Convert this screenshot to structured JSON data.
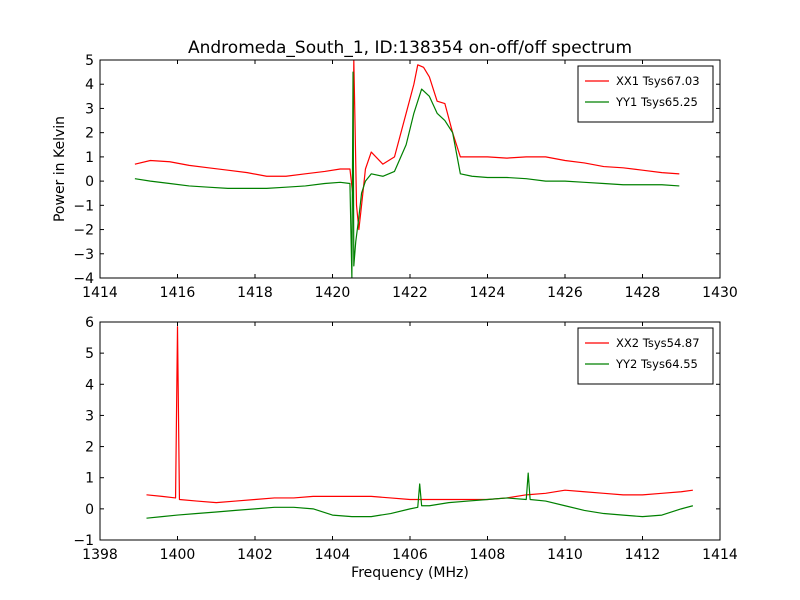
{
  "title": "Andromeda_South_1, ID:138354 on-off/off spectrum",
  "xlabel": "Frequency (MHz)",
  "chart_data": [
    {
      "type": "line",
      "title": "Andromeda_South_1, ID:138354 on-off/off spectrum",
      "xlabel": "",
      "ylabel": "Power in Kelvin",
      "xlim": [
        1414,
        1430
      ],
      "ylim": [
        -4,
        5
      ],
      "xticks": [
        1414,
        1416,
        1418,
        1420,
        1422,
        1424,
        1426,
        1428,
        1430
      ],
      "yticks": [
        -4,
        -3,
        -2,
        -1,
        0,
        1,
        2,
        3,
        4,
        5
      ],
      "xtick_labels": [
        "1414",
        "1416",
        "1418",
        "1420",
        "1422",
        "1424",
        "1426",
        "1428",
        "1430"
      ],
      "ytick_labels": [
        "−4",
        "−3",
        "−2",
        "−1",
        "0",
        "1",
        "2",
        "3",
        "4",
        "5"
      ],
      "grid": false,
      "legend_position": "top-right",
      "series": [
        {
          "name": "XX1 Tsys67.03",
          "color": "#ff0000",
          "x": [
            1414.9,
            1415.3,
            1415.8,
            1416.3,
            1416.8,
            1417.3,
            1417.8,
            1418.3,
            1418.8,
            1419.3,
            1419.8,
            1420.2,
            1420.45,
            1420.52,
            1420.55,
            1420.58,
            1420.62,
            1420.68,
            1420.75,
            1420.85,
            1421.0,
            1421.3,
            1421.6,
            1421.9,
            1422.1,
            1422.2,
            1422.35,
            1422.5,
            1422.7,
            1422.9,
            1423.1,
            1423.3,
            1423.6,
            1424.0,
            1424.5,
            1425.0,
            1425.5,
            1426.0,
            1426.5,
            1427.0,
            1427.5,
            1428.0,
            1428.5,
            1428.95
          ],
          "y": [
            0.7,
            0.85,
            0.8,
            0.65,
            0.55,
            0.45,
            0.35,
            0.2,
            0.2,
            0.3,
            0.4,
            0.5,
            0.5,
            -0.5,
            5.0,
            2.5,
            -1.0,
            -2.0,
            -1.0,
            0.5,
            1.2,
            0.7,
            1.0,
            2.8,
            4.0,
            4.8,
            4.7,
            4.3,
            3.3,
            3.2,
            2.0,
            1.0,
            1.0,
            1.0,
            0.95,
            1.0,
            1.0,
            0.85,
            0.75,
            0.6,
            0.55,
            0.45,
            0.35,
            0.3
          ]
        },
        {
          "name": "YY1 Tsys65.25",
          "color": "#008000",
          "x": [
            1414.9,
            1415.3,
            1415.8,
            1416.3,
            1416.8,
            1417.3,
            1417.8,
            1418.3,
            1418.8,
            1419.3,
            1419.8,
            1420.2,
            1420.45,
            1420.5,
            1420.53,
            1420.55,
            1420.6,
            1420.68,
            1420.75,
            1420.85,
            1421.0,
            1421.3,
            1421.6,
            1421.9,
            1422.1,
            1422.3,
            1422.5,
            1422.7,
            1422.9,
            1423.1,
            1423.3,
            1423.6,
            1424.0,
            1424.5,
            1425.0,
            1425.5,
            1426.0,
            1426.5,
            1427.0,
            1427.5,
            1428.0,
            1428.5,
            1428.95
          ],
          "y": [
            0.1,
            0.0,
            -0.1,
            -0.2,
            -0.25,
            -0.3,
            -0.3,
            -0.3,
            -0.25,
            -0.2,
            -0.1,
            -0.05,
            -0.1,
            -4.0,
            4.5,
            -3.5,
            -2.5,
            -1.5,
            -0.5,
            0.0,
            0.3,
            0.2,
            0.4,
            1.5,
            2.8,
            3.8,
            3.5,
            2.8,
            2.5,
            2.0,
            0.3,
            0.2,
            0.15,
            0.15,
            0.1,
            0.0,
            0.0,
            -0.05,
            -0.1,
            -0.15,
            -0.15,
            -0.15,
            -0.2
          ]
        }
      ]
    },
    {
      "type": "line",
      "title": "",
      "xlabel": "Frequency (MHz)",
      "ylabel": "",
      "xlim": [
        1398,
        1414
      ],
      "ylim": [
        -1,
        6
      ],
      "xticks": [
        1398,
        1400,
        1402,
        1404,
        1406,
        1408,
        1410,
        1412,
        1414
      ],
      "yticks": [
        -1,
        0,
        1,
        2,
        3,
        4,
        5,
        6
      ],
      "xtick_labels": [
        "1398",
        "1400",
        "1402",
        "1404",
        "1406",
        "1408",
        "1410",
        "1412",
        "1414"
      ],
      "ytick_labels": [
        "−1",
        "0",
        "1",
        "2",
        "3",
        "4",
        "5",
        "6"
      ],
      "grid": false,
      "legend_position": "top-right",
      "series": [
        {
          "name": "XX2 Tsys54.87",
          "color": "#ff0000",
          "x": [
            1399.2,
            1399.6,
            1399.95,
            1400.0,
            1400.05,
            1400.5,
            1401.0,
            1401.5,
            1402.0,
            1402.5,
            1403.0,
            1403.5,
            1404.0,
            1404.5,
            1405.0,
            1405.5,
            1406.0,
            1406.5,
            1407.0,
            1407.5,
            1408.0,
            1408.5,
            1409.0,
            1409.5,
            1410.0,
            1410.5,
            1411.0,
            1411.5,
            1412.0,
            1412.5,
            1413.0,
            1413.3
          ],
          "y": [
            0.45,
            0.4,
            0.35,
            5.85,
            0.3,
            0.25,
            0.2,
            0.25,
            0.3,
            0.35,
            0.35,
            0.4,
            0.4,
            0.4,
            0.4,
            0.35,
            0.3,
            0.3,
            0.3,
            0.3,
            0.3,
            0.35,
            0.45,
            0.5,
            0.6,
            0.55,
            0.5,
            0.45,
            0.45,
            0.5,
            0.55,
            0.6
          ]
        },
        {
          "name": "YY2 Tsys64.55",
          "color": "#008000",
          "x": [
            1399.2,
            1399.6,
            1400.0,
            1400.5,
            1401.0,
            1401.5,
            1402.0,
            1402.5,
            1403.0,
            1403.5,
            1404.0,
            1404.5,
            1405.0,
            1405.5,
            1406.0,
            1406.2,
            1406.25,
            1406.3,
            1406.5,
            1407.0,
            1407.5,
            1408.0,
            1408.5,
            1409.0,
            1409.05,
            1409.1,
            1409.5,
            1410.0,
            1410.5,
            1411.0,
            1411.5,
            1412.0,
            1412.5,
            1413.0,
            1413.3
          ],
          "y": [
            -0.3,
            -0.25,
            -0.2,
            -0.15,
            -0.1,
            -0.05,
            0.0,
            0.05,
            0.05,
            0.0,
            -0.2,
            -0.25,
            -0.25,
            -0.15,
            0.0,
            0.05,
            0.8,
            0.1,
            0.1,
            0.2,
            0.25,
            0.3,
            0.35,
            0.3,
            1.15,
            0.3,
            0.25,
            0.1,
            -0.05,
            -0.15,
            -0.2,
            -0.25,
            -0.2,
            0.0,
            0.1
          ]
        }
      ]
    }
  ]
}
